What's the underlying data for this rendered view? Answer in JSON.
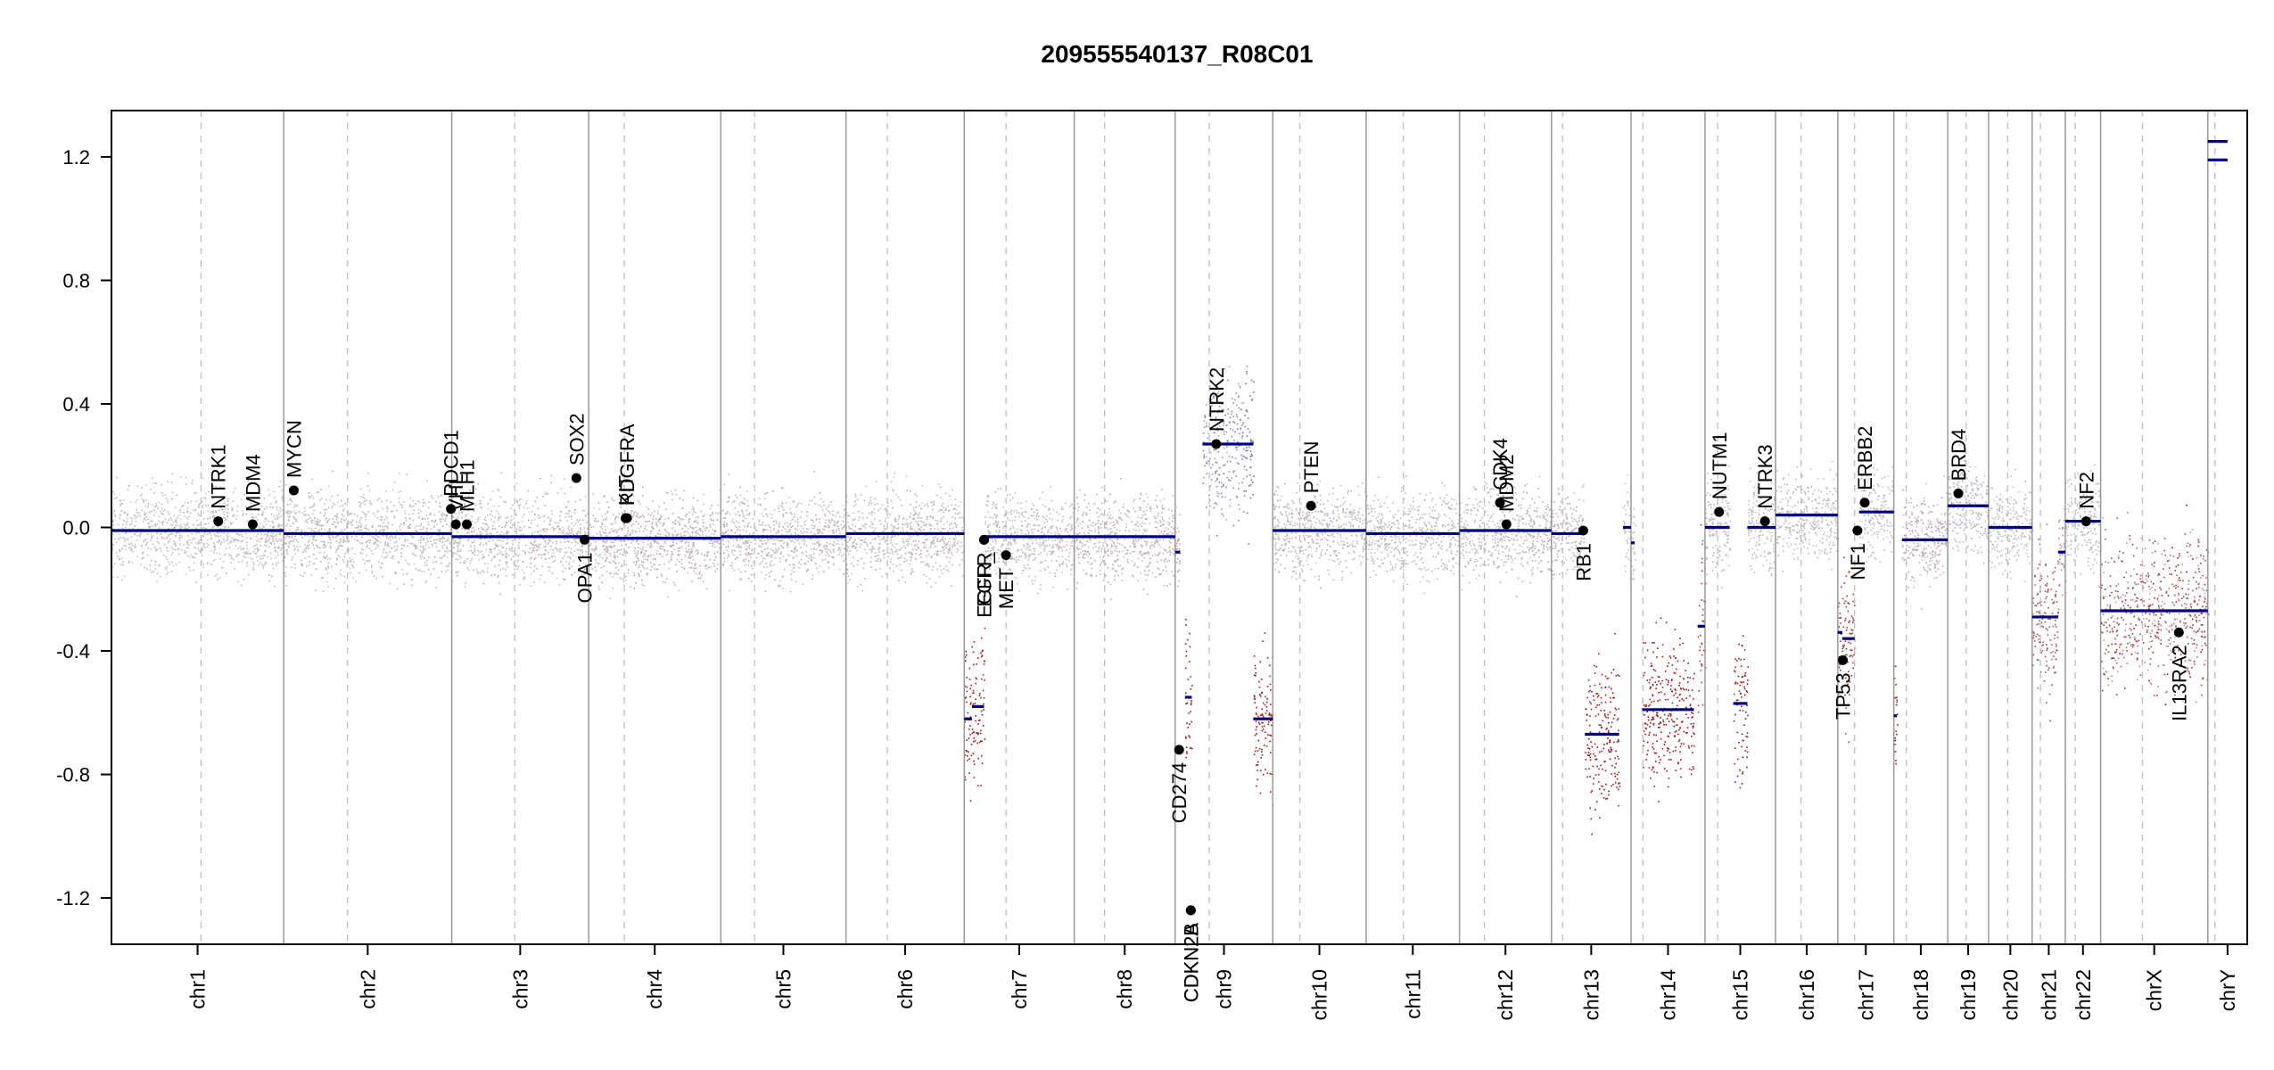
{
  "chart_data": {
    "type": "scatter",
    "title": "209555540137_R08C01",
    "xlabel": "",
    "ylabel": "",
    "ylim": [
      -1.35,
      1.35
    ],
    "y_ticks": [
      -1.2,
      -0.8,
      -0.4,
      0.0,
      0.4,
      0.8,
      1.2
    ],
    "y_tick_labels": [
      "-1.2",
      "-0.8",
      "-0.4",
      "0.0",
      "0.4",
      "0.8",
      "1.2"
    ],
    "grid": false,
    "legend": "none",
    "colors": {
      "segment": "#000080",
      "gain": "#7b7fb8",
      "loss": "#9e1a1a",
      "neutral": "#c4bfc7",
      "centromere": "#bdbdbd",
      "boundary": "#9a9a9a"
    },
    "chromosomes": [
      {
        "name": "chr1",
        "length": 249,
        "centro": 0.52
      },
      {
        "name": "chr2",
        "length": 243,
        "centro": 0.38
      },
      {
        "name": "chr3",
        "length": 198,
        "centro": 0.46
      },
      {
        "name": "chr4",
        "length": 191,
        "centro": 0.27
      },
      {
        "name": "chr5",
        "length": 181,
        "centro": 0.27
      },
      {
        "name": "chr6",
        "length": 171,
        "centro": 0.35
      },
      {
        "name": "chr7",
        "length": 159,
        "centro": 0.38
      },
      {
        "name": "chr8",
        "length": 146,
        "centro": 0.3
      },
      {
        "name": "chr9",
        "length": 141,
        "centro": 0.35
      },
      {
        "name": "chr10",
        "length": 135,
        "centro": 0.29
      },
      {
        "name": "chr11",
        "length": 135,
        "centro": 0.4
      },
      {
        "name": "chr12",
        "length": 133,
        "centro": 0.27
      },
      {
        "name": "chr13",
        "length": 115,
        "centro": 0.14
      },
      {
        "name": "chr14",
        "length": 107,
        "centro": 0.16
      },
      {
        "name": "chr15",
        "length": 102,
        "centro": 0.18
      },
      {
        "name": "chr16",
        "length": 90,
        "centro": 0.41
      },
      {
        "name": "chr17",
        "length": 81,
        "centro": 0.3
      },
      {
        "name": "chr18",
        "length": 78,
        "centro": 0.23
      },
      {
        "name": "chr19",
        "length": 59,
        "centro": 0.45
      },
      {
        "name": "chr20",
        "length": 63,
        "centro": 0.44
      },
      {
        "name": "chr21",
        "length": 48,
        "centro": 0.25
      },
      {
        "name": "chr22",
        "length": 51,
        "centro": 0.28
      },
      {
        "name": "chrX",
        "length": 155,
        "centro": 0.39
      },
      {
        "name": "chrY",
        "length": 57,
        "centro": 0.18
      }
    ],
    "segments": [
      {
        "chr": "chr1",
        "from": 0.0,
        "to": 1.0,
        "value": -0.01
      },
      {
        "chr": "chr2",
        "from": 0.0,
        "to": 1.0,
        "value": -0.02
      },
      {
        "chr": "chr3",
        "from": 0.0,
        "to": 1.0,
        "value": -0.03
      },
      {
        "chr": "chr4",
        "from": 0.0,
        "to": 1.0,
        "value": -0.035
      },
      {
        "chr": "chr5",
        "from": 0.0,
        "to": 1.0,
        "value": -0.03
      },
      {
        "chr": "chr6",
        "from": 0.0,
        "to": 1.0,
        "value": -0.02
      },
      {
        "chr": "chr7",
        "from": 0.0,
        "to": 0.07,
        "value": -0.62
      },
      {
        "chr": "chr7",
        "from": 0.07,
        "to": 0.18,
        "value": -0.58
      },
      {
        "chr": "chr7",
        "from": 0.18,
        "to": 1.0,
        "value": -0.03
      },
      {
        "chr": "chr8",
        "from": 0.0,
        "to": 1.0,
        "value": -0.03
      },
      {
        "chr": "chr9",
        "from": 0.0,
        "to": 0.05,
        "value": -0.08
      },
      {
        "chr": "chr9",
        "from": 0.1,
        "to": 0.17,
        "value": -0.55
      },
      {
        "chr": "chr9",
        "from": 0.28,
        "to": 0.7,
        "value": 0.27
      },
      {
        "chr": "chr9",
        "from": 0.7,
        "to": 0.8,
        "value": 0.27
      },
      {
        "chr": "chr9",
        "from": 0.8,
        "to": 1.0,
        "value": -0.62
      },
      {
        "chr": "chr10",
        "from": 0.0,
        "to": 1.0,
        "value": -0.01
      },
      {
        "chr": "chr11",
        "from": 0.0,
        "to": 1.0,
        "value": -0.02
      },
      {
        "chr": "chr12",
        "from": 0.0,
        "to": 1.0,
        "value": -0.01
      },
      {
        "chr": "chr13",
        "from": 0.0,
        "to": 0.4,
        "value": -0.02
      },
      {
        "chr": "chr13",
        "from": 0.42,
        "to": 0.85,
        "value": -0.67
      },
      {
        "chr": "chr13",
        "from": 0.9,
        "to": 1.0,
        "value": 0.0
      },
      {
        "chr": "chr14",
        "from": 0.0,
        "to": 0.05,
        "value": -0.05
      },
      {
        "chr": "chr14",
        "from": 0.15,
        "to": 0.85,
        "value": -0.59
      },
      {
        "chr": "chr14",
        "from": 0.9,
        "to": 1.0,
        "value": -0.32
      },
      {
        "chr": "chr15",
        "from": 0.0,
        "to": 0.35,
        "value": 0.0
      },
      {
        "chr": "chr15",
        "from": 0.4,
        "to": 0.6,
        "value": -0.57
      },
      {
        "chr": "chr15",
        "from": 0.6,
        "to": 1.0,
        "value": 0.0
      },
      {
        "chr": "chr16",
        "from": 0.0,
        "to": 1.0,
        "value": 0.04
      },
      {
        "chr": "chr17",
        "from": 0.0,
        "to": 0.08,
        "value": -0.34
      },
      {
        "chr": "chr17",
        "from": 0.08,
        "to": 0.3,
        "value": -0.36
      },
      {
        "chr": "chr17",
        "from": 0.38,
        "to": 1.0,
        "value": 0.05
      },
      {
        "chr": "chr18",
        "from": 0.0,
        "to": 0.06,
        "value": -0.61
      },
      {
        "chr": "chr18",
        "from": 0.15,
        "to": 1.0,
        "value": -0.04
      },
      {
        "chr": "chr19",
        "from": 0.0,
        "to": 1.0,
        "value": 0.07
      },
      {
        "chr": "chr20",
        "from": 0.0,
        "to": 1.0,
        "value": 0.0
      },
      {
        "chr": "chr21",
        "from": 0.0,
        "to": 0.78,
        "value": -0.29
      },
      {
        "chr": "chr21",
        "from": 0.78,
        "to": 1.0,
        "value": -0.08
      },
      {
        "chr": "chr22",
        "from": 0.0,
        "to": 1.0,
        "value": 0.02
      },
      {
        "chr": "chrX",
        "from": 0.0,
        "to": 1.0,
        "value": -0.27
      },
      {
        "chr": "chrY",
        "from": 0.0,
        "to": 0.5,
        "value": 1.19
      },
      {
        "chr": "chrY",
        "from": 0.0,
        "to": 0.5,
        "value": 1.25
      }
    ],
    "genes": [
      {
        "name": "NTRK1",
        "chr": "chr1",
        "pos": 0.62,
        "value": 0.02,
        "label_side": "above"
      },
      {
        "name": "MDM4",
        "chr": "chr1",
        "pos": 0.82,
        "value": 0.01,
        "label_side": "above"
      },
      {
        "name": "MYCN",
        "chr": "chr2",
        "pos": 0.06,
        "value": 0.12,
        "label_side": "above"
      },
      {
        "name": "VHL",
        "chr": "chr3",
        "pos": 0.03,
        "value": 0.01,
        "label_side": "above"
      },
      {
        "name": "PDCD1",
        "chr": "chr2",
        "pos": 0.995,
        "value": 0.06,
        "label_side": "above"
      },
      {
        "name": "MLH1",
        "chr": "chr3",
        "pos": 0.11,
        "value": 0.01,
        "label_side": "above"
      },
      {
        "name": "SOX2",
        "chr": "chr3",
        "pos": 0.91,
        "value": 0.16,
        "label_side": "above"
      },
      {
        "name": "OPA1",
        "chr": "chr3",
        "pos": 0.97,
        "value": -0.04,
        "label_side": "below"
      },
      {
        "name": "KIT",
        "chr": "chr4",
        "pos": 0.28,
        "value": 0.03,
        "label_side": "above"
      },
      {
        "name": "PDGFRA",
        "chr": "chr4",
        "pos": 0.29,
        "value": 0.03,
        "label_side": "above"
      },
      {
        "name": "EGFR",
        "chr": "chr7",
        "pos": 0.18,
        "value": -0.04,
        "label_side": "below"
      },
      {
        "name": "EGFR_",
        "chr": "chr7",
        "pos": 0.18,
        "value": -0.04,
        "label_side": "below"
      },
      {
        "name": "MET",
        "chr": "chr7",
        "pos": 0.38,
        "value": -0.09,
        "label_side": "below"
      },
      {
        "name": "CD274",
        "chr": "chr9",
        "pos": 0.04,
        "value": -0.72,
        "label_side": "below"
      },
      {
        "name": "CDKN2A",
        "chr": "chr9",
        "pos": 0.16,
        "value": -1.24,
        "label_side": "below"
      },
      {
        "name": "CDKN2B",
        "chr": "chr9",
        "pos": 0.16,
        "value": -1.24,
        "label_side": "below"
      },
      {
        "name": "NTRK2",
        "chr": "chr9",
        "pos": 0.42,
        "value": 0.27,
        "label_side": "above"
      },
      {
        "name": "PTEN",
        "chr": "chr10",
        "pos": 0.41,
        "value": 0.07,
        "label_side": "above"
      },
      {
        "name": "CDK4",
        "chr": "chr12",
        "pos": 0.44,
        "value": 0.08,
        "label_side": "above"
      },
      {
        "name": "MDM2",
        "chr": "chr12",
        "pos": 0.51,
        "value": 0.01,
        "label_side": "above"
      },
      {
        "name": "RB1",
        "chr": "chr13",
        "pos": 0.4,
        "value": -0.01,
        "label_side": "below"
      },
      {
        "name": "NUTM1",
        "chr": "chr15",
        "pos": 0.2,
        "value": 0.05,
        "label_side": "above"
      },
      {
        "name": "NTRK3",
        "chr": "chr15",
        "pos": 0.85,
        "value": 0.02,
        "label_side": "above"
      },
      {
        "name": "TP53",
        "chr": "chr17",
        "pos": 0.09,
        "value": -0.43,
        "label_side": "below"
      },
      {
        "name": "NF1",
        "chr": "chr17",
        "pos": 0.35,
        "value": -0.01,
        "label_side": "below"
      },
      {
        "name": "ERBB2",
        "chr": "chr17",
        "pos": 0.48,
        "value": 0.08,
        "label_side": "above"
      },
      {
        "name": "BRD4",
        "chr": "chr19",
        "pos": 0.26,
        "value": 0.11,
        "label_side": "above"
      },
      {
        "name": "NF2",
        "chr": "chr22",
        "pos": 0.59,
        "value": 0.02,
        "label_side": "above"
      },
      {
        "name": "IL13RA2",
        "chr": "chrX",
        "pos": 0.73,
        "value": -0.34,
        "label_side": "below"
      }
    ]
  }
}
